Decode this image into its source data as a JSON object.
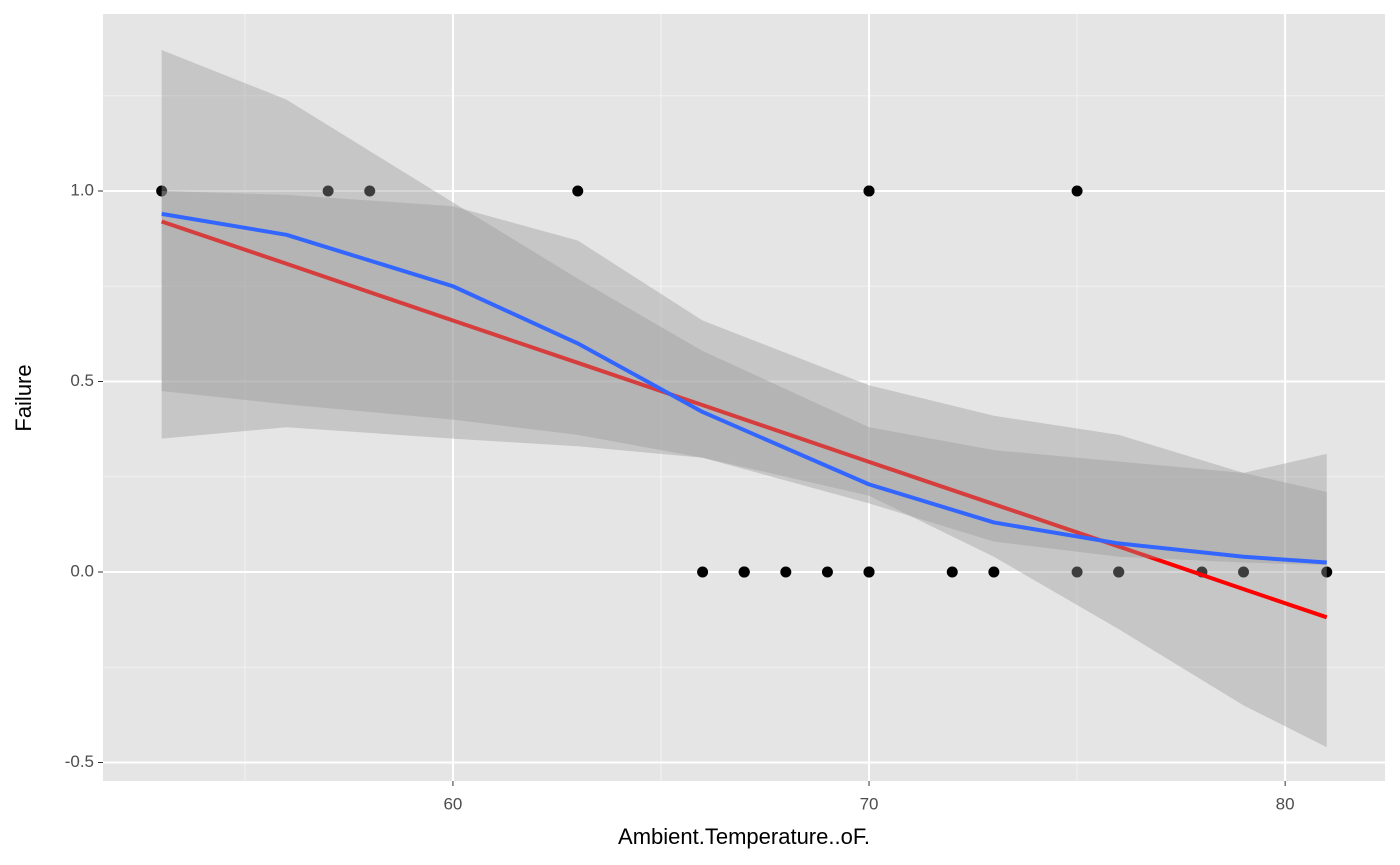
{
  "chart_data": {
    "type": "scatter",
    "x_label": "Ambient.Temperature..oF.",
    "y_label": "Failure",
    "xlim": [
      51.59,
      82.4
    ],
    "ylim": [
      -0.5486,
      1.4646
    ],
    "xticks": [
      60,
      70,
      80
    ],
    "yticks": [
      {
        "value": -0.5,
        "label": "-0.5"
      },
      {
        "value": 0,
        "label": "0.0"
      },
      {
        "value": 0.5,
        "label": "0.5"
      },
      {
        "value": 1,
        "label": "1.0"
      }
    ],
    "grid": true,
    "points": {
      "color": "#000000",
      "x": [
        53,
        57,
        58,
        63,
        70,
        70,
        75,
        66,
        67,
        67,
        67,
        68,
        69,
        70,
        70,
        72,
        73,
        75,
        76,
        76,
        78,
        79,
        81
      ],
      "y": [
        1,
        1,
        1,
        1,
        1,
        1,
        1,
        0,
        0,
        0,
        0,
        0,
        0,
        0,
        0,
        0,
        0,
        0,
        0,
        0,
        0,
        0,
        0
      ]
    },
    "fits": [
      {
        "color": "#ff0000",
        "band_color": "#999999",
        "x": [
          53,
          56,
          60,
          63,
          66,
          70,
          73,
          76,
          79,
          81
        ],
        "values": [
          0.92,
          0.809,
          0.66,
          0.549,
          0.438,
          0.289,
          0.178,
          0.067,
          -0.045,
          -0.119
        ],
        "lower": [
          0.35,
          0.38,
          0.35,
          0.33,
          0.3,
          0.2,
          0.04,
          -0.15,
          -0.35,
          -0.46
        ],
        "upper": [
          1.37,
          1.24,
          0.97,
          0.77,
          0.58,
          0.38,
          0.32,
          0.29,
          0.26,
          0.31
        ]
      },
      {
        "color": "#3366ff",
        "band_color": "#999999",
        "x": [
          53,
          56,
          60,
          63,
          66,
          70,
          73,
          76,
          79,
          81
        ],
        "values": [
          0.94,
          0.885,
          0.75,
          0.6,
          0.42,
          0.23,
          0.13,
          0.075,
          0.04,
          0.025
        ],
        "lower": [
          0.475,
          0.44,
          0.4,
          0.36,
          0.3,
          0.18,
          0.08,
          0.04,
          0.025,
          0.018
        ],
        "upper": [
          1.0,
          0.99,
          0.96,
          0.87,
          0.66,
          0.49,
          0.41,
          0.36,
          0.26,
          0.21
        ]
      }
    ]
  }
}
